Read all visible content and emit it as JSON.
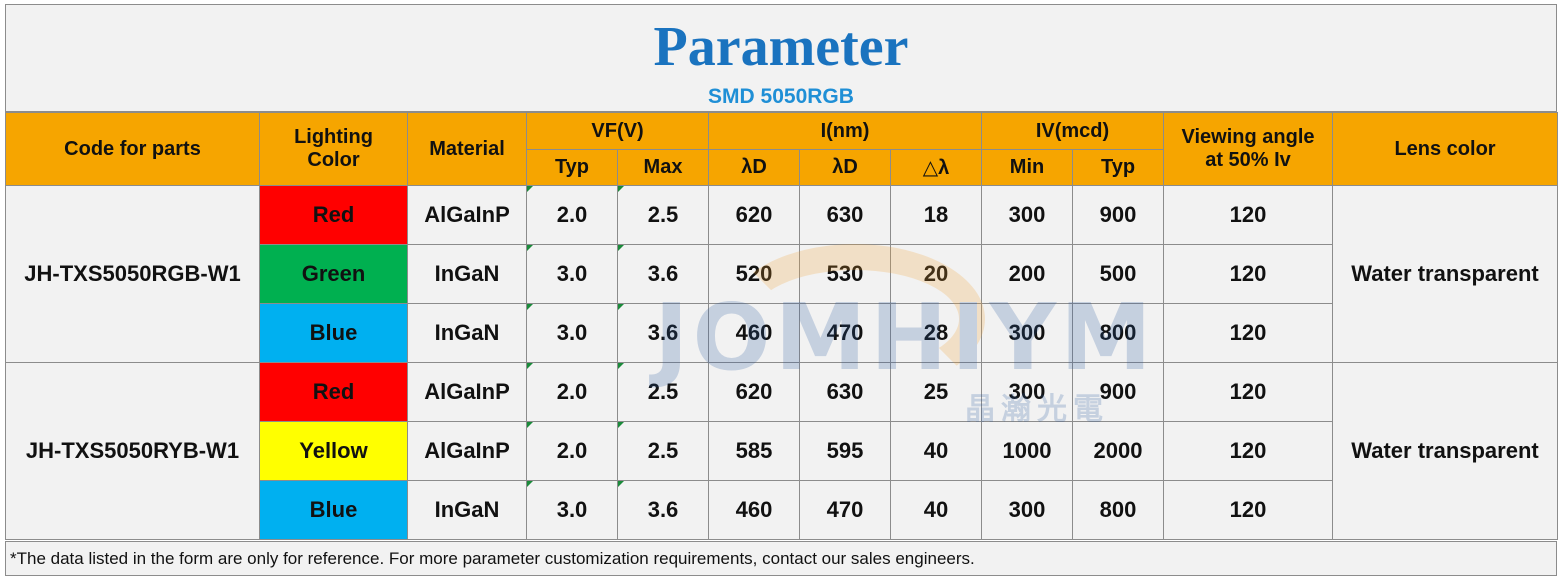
{
  "title": "Parameter",
  "subtitle": "SMD 5050RGB",
  "headers": {
    "code": "Code for parts",
    "lighting_color": "Lighting\nColor",
    "material": "Material",
    "vf": "VF(V)",
    "wavelength": "I(nm)",
    "iv": "IV(mcd)",
    "viewing_angle": "Viewing angle\nat 50% Iv",
    "lens_color": "Lens color",
    "vf_typ": "Typ",
    "vf_max": "Max",
    "ld1": "λD",
    "ld2": "λD",
    "dl": "△λ",
    "iv_min": "Min",
    "iv_typ": "Typ"
  },
  "groups": [
    {
      "code": "JH-TXS5050RGB-W1",
      "lens": "Water transparent",
      "rows": [
        {
          "color": "Red",
          "color_hex": "#ff0000",
          "material": "AlGaInP",
          "vf_typ": "2.0",
          "vf_max": "2.5",
          "ld1": "620",
          "ld2": "630",
          "dl": "18",
          "iv_min": "300",
          "iv_typ": "900",
          "angle": "120"
        },
        {
          "color": "Green",
          "color_hex": "#00b050",
          "material": "InGaN",
          "vf_typ": "3.0",
          "vf_max": "3.6",
          "ld1": "520",
          "ld2": "530",
          "dl": "20",
          "iv_min": "200",
          "iv_typ": "500",
          "angle": "120"
        },
        {
          "color": "Blue",
          "color_hex": "#00b0f0",
          "material": "InGaN",
          "vf_typ": "3.0",
          "vf_max": "3.6",
          "ld1": "460",
          "ld2": "470",
          "dl": "28",
          "iv_min": "300",
          "iv_typ": "800",
          "angle": "120"
        }
      ]
    },
    {
      "code": "JH-TXS5050RYB-W1",
      "lens": "Water transparent",
      "rows": [
        {
          "color": "Red",
          "color_hex": "#ff0000",
          "material": "AlGaInP",
          "vf_typ": "2.0",
          "vf_max": "2.5",
          "ld1": "620",
          "ld2": "630",
          "dl": "25",
          "iv_min": "300",
          "iv_typ": "900",
          "angle": "120"
        },
        {
          "color": "Yellow",
          "color_hex": "#ffff00",
          "material": "AlGaInP",
          "vf_typ": "2.0",
          "vf_max": "2.5",
          "ld1": "585",
          "ld2": "595",
          "dl": "40",
          "iv_min": "1000",
          "iv_typ": "2000",
          "angle": "120"
        },
        {
          "color": "Blue",
          "color_hex": "#00b0f0",
          "material": "InGaN",
          "vf_typ": "3.0",
          "vf_max": "3.6",
          "ld1": "460",
          "ld2": "470",
          "dl": "40",
          "iv_min": "300",
          "iv_typ": "800",
          "angle": "120"
        }
      ]
    }
  ],
  "footnote": "*The data listed in the form are only for reference. For more parameter customization requirements, contact our sales engineers.",
  "watermark": {
    "text": "JOMHIYM",
    "sub": "晶瀚光電"
  },
  "colors": {
    "header_bg": "#f6a500",
    "title": "#1a73bf",
    "subtitle": "#1f8fd6",
    "cell_bg": "#f2f2f2"
  }
}
